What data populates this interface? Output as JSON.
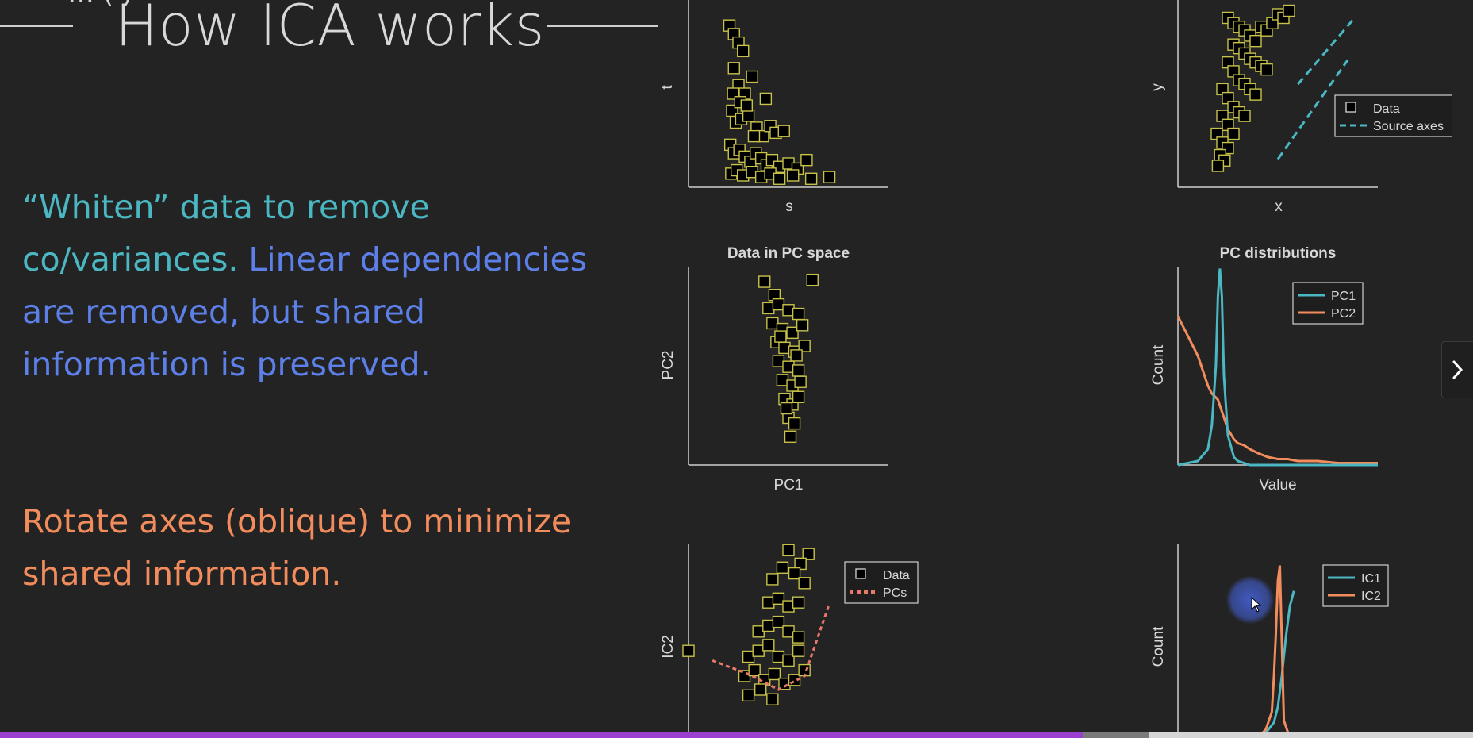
{
  "slide": {
    "prev_title_fragment": "… ( )",
    "title": "How ICA works",
    "paragraph1": {
      "teal": "“Whiten” data to remove co/variances.",
      "blue": "Linear dependencies are removed, but shared information is preserved."
    },
    "paragraph2": "Rotate axes (oblique) to minimize shared information."
  },
  "colors": {
    "background": "#232323",
    "teal": "#4ab7c2",
    "blue": "#5c7fe8",
    "orange": "#f28c5c",
    "data_markers": "#c7c24a",
    "progress_fill": "#9b3fd1"
  },
  "panels": {
    "source": {
      "xlabel": "s",
      "ylabel": "t"
    },
    "mixed": {
      "xlabel": "x",
      "ylabel": "y",
      "legend": [
        "Data",
        "Source axes"
      ]
    },
    "pc_space": {
      "title": "Data in PC space",
      "xlabel": "PC1",
      "ylabel": "PC2"
    },
    "pc_dist": {
      "title": "PC distributions",
      "xlabel": "Value",
      "ylabel": "Count",
      "legend": [
        "PC1",
        "PC2"
      ]
    },
    "ic_space": {
      "ylabel": "IC2",
      "legend": [
        "Data",
        "PCs"
      ]
    },
    "ic_dist": {
      "ylabel": "Count",
      "legend": [
        "IC1",
        "IC2"
      ]
    }
  },
  "chart_data": [
    {
      "type": "scatter",
      "title": "",
      "xlabel": "s",
      "ylabel": "t",
      "x": [
        0.45,
        0.5,
        0.55,
        0.6,
        0.5,
        0.55,
        0.62,
        0.7,
        0.48,
        0.52,
        0.58,
        0.66,
        0.75,
        0.82,
        0.9,
        0.96,
        1.05,
        0.46,
        0.5,
        0.56,
        0.62,
        0.68,
        0.74,
        0.8,
        0.86,
        0.92,
        1.0,
        1.1,
        1.2,
        1.3,
        0.47,
        0.53,
        0.6,
        0.7,
        0.8,
        0.9,
        1.0,
        1.15,
        1.35,
        1.55,
        0.49,
        0.57,
        0.64,
        0.72,
        0.85
      ],
      "y": [
        0.95,
        0.9,
        0.85,
        0.8,
        0.7,
        0.6,
        0.55,
        0.65,
        0.45,
        0.38,
        0.4,
        0.42,
        0.35,
        0.3,
        0.36,
        0.32,
        0.33,
        0.25,
        0.2,
        0.22,
        0.18,
        0.15,
        0.2,
        0.17,
        0.13,
        0.16,
        0.12,
        0.14,
        0.11,
        0.16,
        0.08,
        0.1,
        0.07,
        0.09,
        0.06,
        0.08,
        0.05,
        0.07,
        0.05,
        0.06,
        0.55,
        0.5,
        0.48,
        0.3,
        0.52
      ]
    },
    {
      "type": "scatter",
      "title": "",
      "xlabel": "x",
      "ylabel": "y",
      "series": [
        {
          "name": "Data"
        },
        {
          "name": "Source axes"
        }
      ],
      "x": [
        0.45,
        0.5,
        0.55,
        0.6,
        0.65,
        0.7,
        0.75,
        0.8,
        0.85,
        0.9,
        0.5,
        0.55,
        0.6,
        0.65,
        0.7,
        0.75,
        0.8,
        0.45,
        0.5,
        0.55,
        0.6,
        0.65,
        0.7,
        0.4,
        0.45,
        0.5,
        0.55,
        0.6,
        0.4,
        0.45,
        0.5,
        0.35,
        0.4,
        0.45,
        0.38,
        0.42,
        0.36,
        0.95,
        1.0
      ],
      "y": [
        0.95,
        0.92,
        0.9,
        0.88,
        0.85,
        0.82,
        0.9,
        0.88,
        0.92,
        0.97,
        0.8,
        0.78,
        0.75,
        0.72,
        0.7,
        0.68,
        0.66,
        0.7,
        0.65,
        0.6,
        0.58,
        0.55,
        0.52,
        0.55,
        0.5,
        0.45,
        0.42,
        0.4,
        0.4,
        0.35,
        0.3,
        0.3,
        0.25,
        0.22,
        0.18,
        0.15,
        0.12,
        0.95,
        0.99
      ]
    },
    {
      "type": "scatter",
      "title": "Data in PC space",
      "xlabel": "PC1",
      "ylabel": "PC2",
      "x": [
        0.38,
        0.43,
        0.62,
        0.4,
        0.45,
        0.5,
        0.55,
        0.42,
        0.47,
        0.52,
        0.57,
        0.44,
        0.48,
        0.53,
        0.58,
        0.45,
        0.5,
        0.55,
        0.47,
        0.52,
        0.56,
        0.48,
        0.52,
        0.55,
        0.5,
        0.53,
        0.51,
        0.46,
        0.54,
        0.49
      ],
      "y": [
        0.97,
        0.9,
        0.98,
        0.83,
        0.85,
        0.82,
        0.8,
        0.75,
        0.72,
        0.7,
        0.74,
        0.65,
        0.62,
        0.6,
        0.63,
        0.55,
        0.52,
        0.5,
        0.45,
        0.42,
        0.44,
        0.35,
        0.32,
        0.36,
        0.25,
        0.22,
        0.15,
        0.68,
        0.58,
        0.3
      ]
    },
    {
      "type": "line",
      "title": "PC distributions",
      "xlabel": "Value",
      "ylabel": "Count",
      "x": [
        0,
        0.05,
        0.1,
        0.15,
        0.17,
        0.19,
        0.2,
        0.21,
        0.22,
        0.23,
        0.25,
        0.28,
        0.3,
        0.33,
        0.36,
        0.4,
        0.45,
        0.5,
        0.55,
        0.6,
        0.7,
        0.8,
        0.9,
        1.0
      ],
      "series": [
        {
          "name": "PC1",
          "values": [
            0,
            0.01,
            0.02,
            0.08,
            0.2,
            0.5,
            0.85,
            0.99,
            0.85,
            0.45,
            0.15,
            0.04,
            0.02,
            0.01,
            0,
            0,
            0,
            0,
            0,
            0,
            0,
            0,
            0,
            0
          ]
        },
        {
          "name": "PC2",
          "values": [
            0.75,
            0.65,
            0.55,
            0.4,
            0.36,
            0.34,
            0.33,
            0.3,
            0.27,
            0.24,
            0.18,
            0.13,
            0.11,
            0.1,
            0.08,
            0.06,
            0.04,
            0.03,
            0.03,
            0.02,
            0.02,
            0.01,
            0.01,
            0.01
          ]
        }
      ]
    },
    {
      "type": "scatter",
      "title": "",
      "xlabel": "",
      "ylabel": "IC2",
      "series": [
        {
          "name": "Data"
        },
        {
          "name": "PCs"
        }
      ],
      "x": [
        0.5,
        0.6,
        0.56,
        0.42,
        0.47,
        0.53,
        0.58,
        0.4,
        0.45,
        0.5,
        0.55,
        0.35,
        0.4,
        0.45,
        0.5,
        0.55,
        0.3,
        0.35,
        0.4,
        0.45,
        0.5,
        0.55,
        0.28,
        0.33,
        0.38,
        0.43,
        0.48,
        0.53,
        0.58,
        0.3,
        0.36,
        0.42,
        0.0
      ],
      "y": [
        0.97,
        0.95,
        0.9,
        0.82,
        0.88,
        0.85,
        0.8,
        0.7,
        0.72,
        0.68,
        0.7,
        0.55,
        0.58,
        0.6,
        0.55,
        0.52,
        0.42,
        0.45,
        0.48,
        0.42,
        0.4,
        0.45,
        0.32,
        0.35,
        0.3,
        0.33,
        0.28,
        0.3,
        0.35,
        0.22,
        0.25,
        0.2,
        0.45
      ]
    },
    {
      "type": "line",
      "title": "",
      "xlabel": "",
      "ylabel": "Count",
      "x": [
        0.38,
        0.42,
        0.45,
        0.48,
        0.5,
        0.52,
        0.54,
        0.56,
        0.58
      ],
      "series": [
        {
          "name": "IC1",
          "values": [
            0.0,
            0.02,
            0.05,
            0.1,
            0.2,
            0.4,
            0.65,
            0.85,
            0.95
          ]
        },
        {
          "name": "IC2",
          "values": [
            0.0,
            0.05,
            0.15,
            0.4,
            0.75,
            0.99,
            0.6,
            0.3,
            0.1
          ]
        }
      ]
    }
  ],
  "progress": {
    "played_fraction": 0.735,
    "buffered_fraction": 0.78
  }
}
